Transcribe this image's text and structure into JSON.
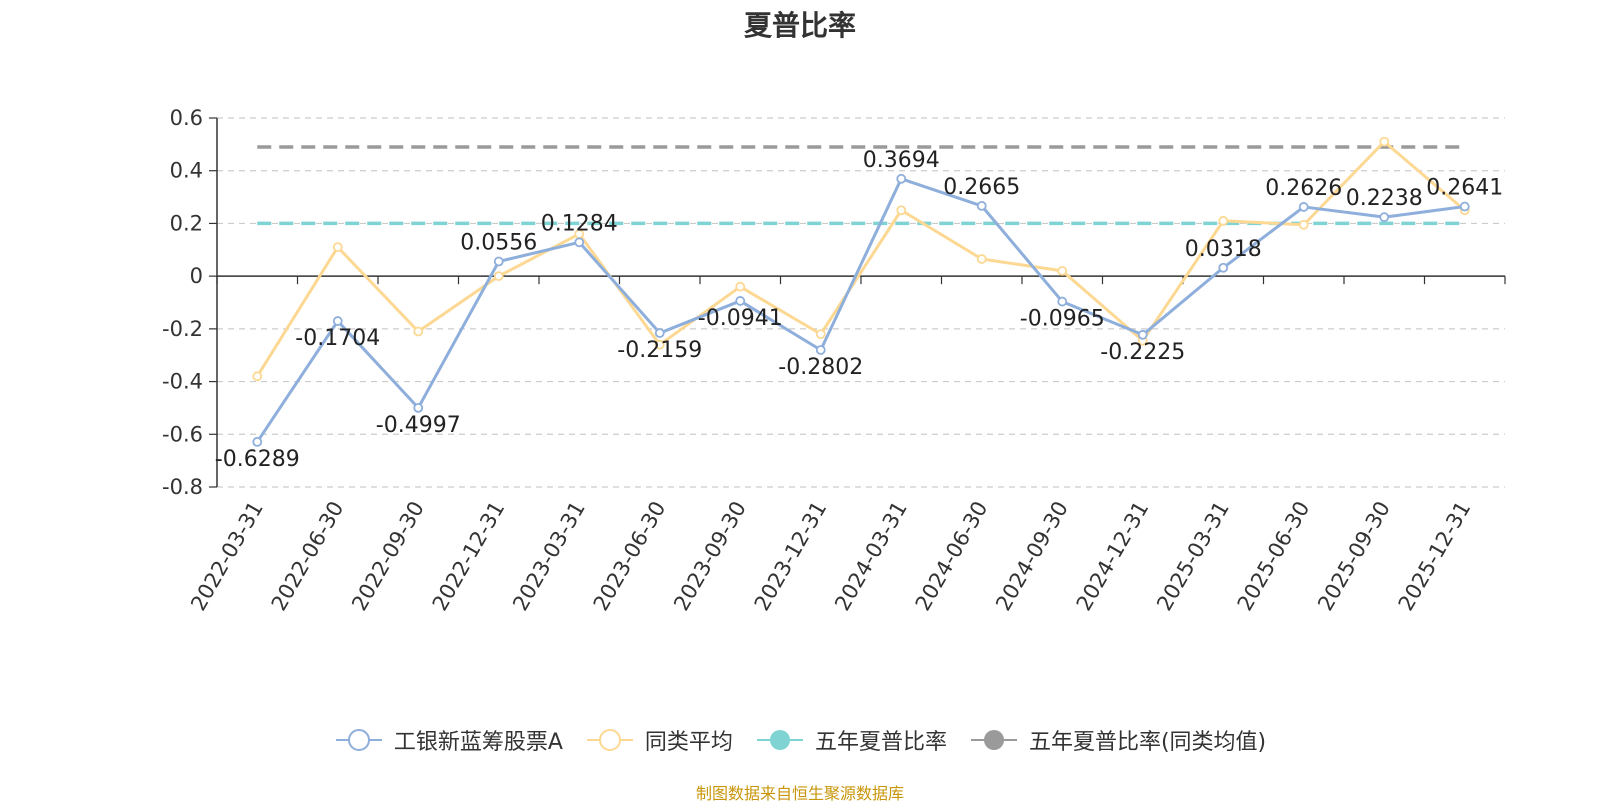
{
  "chart_data": {
    "type": "line",
    "title": "夏普比率",
    "categories": [
      "2022-03-31",
      "2022-06-30",
      "2022-09-30",
      "2022-12-31",
      "2023-03-31",
      "2023-06-30",
      "2023-09-30",
      "2023-12-31",
      "2024-03-31",
      "2024-06-30",
      "2024-09-30",
      "2024-12-31",
      "2025-03-31",
      "2025-06-30",
      "2025-09-30",
      "2025-12-31"
    ],
    "series": [
      {
        "name": "工银新蓝筹股票A",
        "color": "#8eaedb",
        "values": [
          -0.6289,
          -0.1704,
          -0.4997,
          0.0556,
          0.1284,
          -0.2159,
          -0.0941,
          -0.2802,
          0.3694,
          0.2665,
          -0.0965,
          -0.2225,
          0.0318,
          0.2626,
          0.2238,
          0.2641
        ],
        "labels": [
          "-0.6289",
          "-0.1704",
          "-0.4997",
          "0.0556",
          "0.1284",
          "-0.2159",
          "-0.0941",
          "-0.2802",
          "0.3694",
          "0.2665",
          "-0.0965",
          "-0.2225",
          "0.0318",
          "0.2626",
          "0.2238",
          "0.2641"
        ]
      },
      {
        "name": "同类平均",
        "color": "#fcd893",
        "values": [
          -0.38,
          0.11,
          -0.21,
          0.0,
          0.16,
          -0.26,
          -0.04,
          -0.22,
          0.25,
          0.065,
          0.02,
          -0.245,
          0.21,
          0.195,
          0.51,
          0.25
        ]
      },
      {
        "name": "五年夏普比率",
        "color": "#7fd3d3",
        "type": "reference",
        "value": 0.2
      },
      {
        "name": "五年夏普比率(同类均值)",
        "color": "#9a9a9a",
        "type": "reference",
        "value": 0.49
      }
    ],
    "yticks": [
      "0.6",
      "0.4",
      "0.2",
      "0",
      "-0.2",
      "-0.4",
      "-0.6",
      "-0.8"
    ],
    "ylim": [
      -0.8,
      0.6
    ],
    "grid": true,
    "legend_position": "bottom"
  },
  "source_note": "制图数据来自恒生聚源数据库"
}
